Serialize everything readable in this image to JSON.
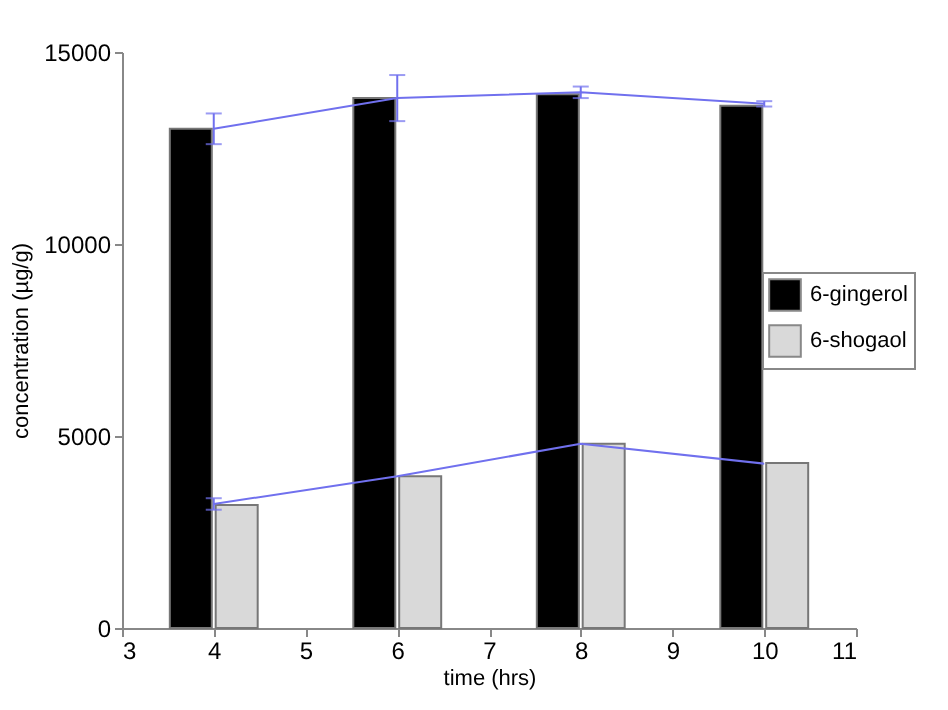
{
  "chart_data": {
    "type": "bar",
    "xlabel": "time (hrs)",
    "ylabel": "concentration (µg/g)",
    "xlim": [
      3,
      11
    ],
    "xticks": [
      3,
      4,
      5,
      6,
      7,
      8,
      9,
      10,
      11
    ],
    "ylim": [
      0,
      15000
    ],
    "yticks": [
      0,
      5000,
      10000,
      15000
    ],
    "grid": false,
    "legend": "right",
    "series": [
      {
        "name": "6-gingerol",
        "color": "#000000",
        "x": [
          3.75,
          5.75,
          7.75,
          9.75
        ],
        "values": [
          13000,
          13800,
          13900,
          13600
        ]
      },
      {
        "name": "6-shogaol",
        "color": "#d9d9d9",
        "x": [
          4.25,
          6.25,
          8.25,
          10.25
        ],
        "values": [
          3200,
          3950,
          4800,
          4300
        ]
      },
      {
        "type": "line",
        "color": "#7070ee",
        "x": [
          4,
          6,
          8,
          10
        ],
        "values": [
          13000,
          13800,
          13950,
          13650
        ],
        "errors": [
          400,
          600,
          150,
          70
        ]
      },
      {
        "type": "line",
        "color": "#7070ee",
        "x": [
          4,
          6,
          8,
          10
        ],
        "values": [
          3230,
          3950,
          4800,
          4280
        ],
        "errors": [
          150,
          null,
          null,
          null
        ]
      }
    ]
  }
}
